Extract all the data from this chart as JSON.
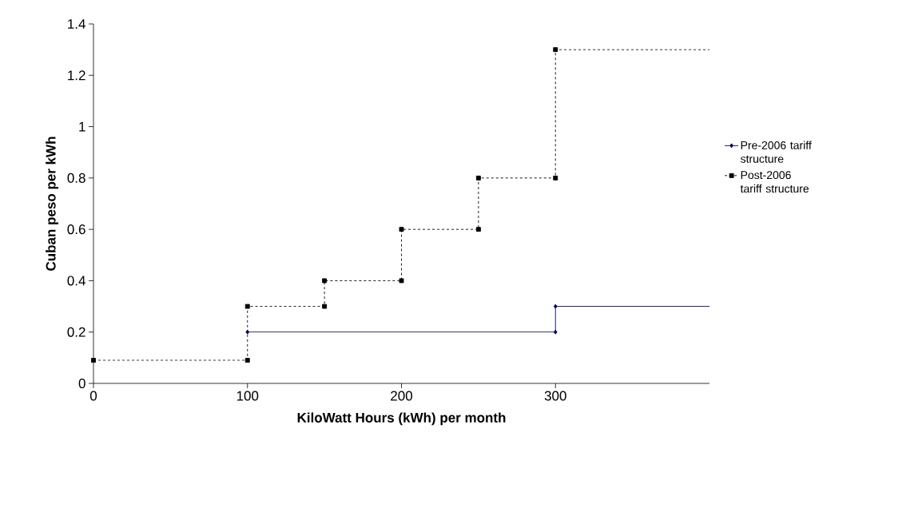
{
  "chart_data": {
    "type": "line",
    "xlabel": "KiloWatt Hours (kWh) per month",
    "ylabel": "Cuban peso per kWh",
    "xlim": [
      0,
      400
    ],
    "ylim": [
      0,
      1.4
    ],
    "xticks": [
      0,
      100,
      200,
      300
    ],
    "yticks": [
      0,
      0.2,
      0.4,
      0.6,
      0.8,
      1,
      1.2,
      1.4
    ],
    "legend": "right",
    "grid": false,
    "series": [
      {
        "name": "Pre-2006 tariff structure",
        "color": "#000066",
        "marker": "diamond",
        "line_style": "solid",
        "x": [
          100,
          300,
          300,
          400
        ],
        "values": [
          0.2,
          0.2,
          0.3,
          0.3
        ]
      },
      {
        "name": "Post-2006 tariff structure",
        "color": "#000000",
        "marker": "square",
        "line_style": "dashed",
        "x": [
          0,
          100,
          100,
          150,
          150,
          200,
          200,
          250,
          250,
          300,
          300,
          400
        ],
        "values": [
          0.09,
          0.09,
          0.3,
          0.3,
          0.4,
          0.4,
          0.6,
          0.6,
          0.8,
          0.8,
          1.3,
          1.3
        ]
      }
    ]
  }
}
